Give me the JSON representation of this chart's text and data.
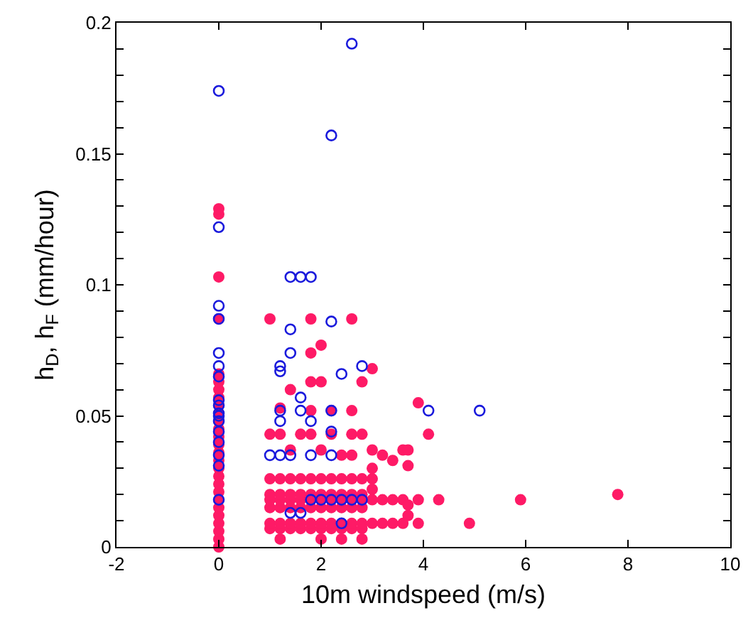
{
  "chart_data": {
    "type": "scatter",
    "xlabel": "10m windspeed (m/s)",
    "ylabel": "h$_{D}$, h$_{F}$ (mm/hour)",
    "xlim": [
      -2,
      10
    ],
    "xticks": [
      -2,
      0,
      2,
      4,
      6,
      8,
      10
    ],
    "ylim": [
      0,
      0.2
    ],
    "yticks": [
      0,
      {
        "value": 0.01,
        "label": null
      },
      {
        "value": 0.02,
        "label": null
      },
      {
        "value": 0.03,
        "label": null
      },
      {
        "value": 0.04,
        "label": null
      },
      0.05,
      {
        "value": 0.06,
        "label": null
      },
      {
        "value": 0.07,
        "label": null
      },
      {
        "value": 0.08,
        "label": null
      },
      {
        "value": 0.09,
        "label": null
      },
      0.1,
      {
        "value": 0.11,
        "label": null
      },
      {
        "value": 0.12,
        "label": null
      },
      {
        "value": 0.13,
        "label": null
      },
      {
        "value": 0.14,
        "label": null
      },
      0.15,
      {
        "value": 0.16,
        "label": null
      },
      {
        "value": 0.17,
        "label": null
      },
      {
        "value": 0.18,
        "label": null
      },
      {
        "value": 0.19,
        "label": null
      },
      0.2
    ],
    "marker": "circle",
    "series": [
      {
        "color": "#fe1a66",
        "x": [
          0,
          0,
          0,
          0,
          0,
          0,
          0,
          0,
          0,
          0,
          0,
          0,
          0,
          0,
          0,
          0,
          0,
          0,
          0,
          0,
          0,
          0,
          0,
          0,
          0,
          0,
          0,
          1.0,
          1.0,
          1.0,
          1.0,
          1.0,
          1.0,
          1.2,
          1.2,
          1.2,
          1.2,
          1.2,
          1.2,
          1.4,
          1.4,
          1.4,
          1.4,
          1.4,
          1.4,
          1.6,
          1.6,
          1.6,
          1.6,
          1.6,
          1.6,
          1.8,
          1.8,
          1.8,
          1.8,
          1.8,
          1.8,
          2.0,
          2.0,
          2.0,
          2.0,
          2.0,
          2.0,
          2.2,
          2.2,
          2.2,
          2.2,
          2.2,
          2.2,
          2.4,
          2.4,
          2.4,
          2.4,
          2.4,
          2.4,
          2.6,
          2.6,
          2.6,
          2.6,
          2.6,
          2.6,
          2.8,
          2.8,
          2.8,
          2.8,
          2.8,
          2.8,
          1.2,
          2.0,
          2.4,
          2.8,
          1.0,
          1.2,
          1.6,
          1.8,
          2.2,
          2.6,
          2.8,
          3.0,
          3.0,
          3.0,
          3.0,
          3.0,
          3.0,
          3.2,
          3.2,
          3.2,
          3.4,
          3.4,
          3.4,
          3.6,
          3.6,
          3.6,
          3.7,
          3.7,
          3.7,
          3.7,
          3.9,
          3.9,
          3.9,
          4.1,
          4.3,
          4.9,
          5.9,
          7.8,
          1.0,
          1.8,
          2.6,
          2.0,
          1.8,
          3.0,
          1.4,
          1.8,
          2.0,
          2.8,
          1.2,
          1.8,
          2.2,
          2.6,
          1.4,
          2.0,
          2.4,
          2.6
        ],
        "values": [
          0,
          0.003,
          0.006,
          0.009,
          0.012,
          0.015,
          0.018,
          0.021,
          0.024,
          0.027,
          0.03,
          0.033,
          0.036,
          0.039,
          0.042,
          0.045,
          0.048,
          0.051,
          0.054,
          0.057,
          0.06,
          0.063,
          0.066,
          0.087,
          0.103,
          0.127,
          0.129,
          0.007,
          0.009,
          0.015,
          0.018,
          0.02,
          0.026,
          0.007,
          0.009,
          0.015,
          0.018,
          0.02,
          0.026,
          0.007,
          0.009,
          0.015,
          0.018,
          0.02,
          0.026,
          0.007,
          0.009,
          0.015,
          0.018,
          0.02,
          0.026,
          0.007,
          0.009,
          0.015,
          0.018,
          0.02,
          0.026,
          0.007,
          0.009,
          0.015,
          0.018,
          0.02,
          0.026,
          0.007,
          0.009,
          0.015,
          0.018,
          0.02,
          0.026,
          0.007,
          0.009,
          0.015,
          0.018,
          0.02,
          0.026,
          0.007,
          0.009,
          0.015,
          0.018,
          0.02,
          0.026,
          0.007,
          0.009,
          0.015,
          0.018,
          0.02,
          0.026,
          0.003,
          0.003,
          0.003,
          0.003,
          0.043,
          0.043,
          0.043,
          0.043,
          0.043,
          0.043,
          0.043,
          0.009,
          0.018,
          0.022,
          0.026,
          0.03,
          0.037,
          0.009,
          0.018,
          0.035,
          0.009,
          0.018,
          0.033,
          0.009,
          0.018,
          0.037,
          0.012,
          0.016,
          0.031,
          0.037,
          0.009,
          0.018,
          0.055,
          0.043,
          0.018,
          0.009,
          0.018,
          0.02,
          0.087,
          0.087,
          0.087,
          0.077,
          0.074,
          0.068,
          0.06,
          0.063,
          0.063,
          0.063,
          0.053,
          0.052,
          0.052,
          0.052,
          0.037,
          0.037,
          0.035,
          0.035
        ]
      },
      {
        "color": "#1a1adc",
        "x": [
          0,
          0,
          0,
          0,
          0,
          0,
          0,
          0,
          0,
          0,
          0,
          0,
          0,
          0,
          0,
          0,
          0,
          2.6,
          2.2,
          1.4,
          1.6,
          1.8,
          2.2,
          1.4,
          1.4,
          1.2,
          1.2,
          2.4,
          2.8,
          1.6,
          1.6,
          1.2,
          2.2,
          1.2,
          1.8,
          4.1,
          5.1,
          2.2,
          1.0,
          1.2,
          1.4,
          1.8,
          2.2,
          1.8,
          2.0,
          2.2,
          2.4,
          2.6,
          2.8,
          1.4,
          1.6,
          2.4
        ],
        "values": [
          0.174,
          0.122,
          0.092,
          0.087,
          0.074,
          0.069,
          0.065,
          0.056,
          0.054,
          0.051,
          0.05,
          0.048,
          0.044,
          0.04,
          0.035,
          0.031,
          0.018,
          0.192,
          0.157,
          0.103,
          0.103,
          0.103,
          0.086,
          0.083,
          0.074,
          0.069,
          0.067,
          0.066,
          0.069,
          0.057,
          0.052,
          0.052,
          0.052,
          0.048,
          0.048,
          0.052,
          0.052,
          0.044,
          0.035,
          0.035,
          0.035,
          0.035,
          0.035,
          0.018,
          0.018,
          0.018,
          0.018,
          0.018,
          0.018,
          0.013,
          0.013,
          0.009
        ]
      }
    ]
  }
}
